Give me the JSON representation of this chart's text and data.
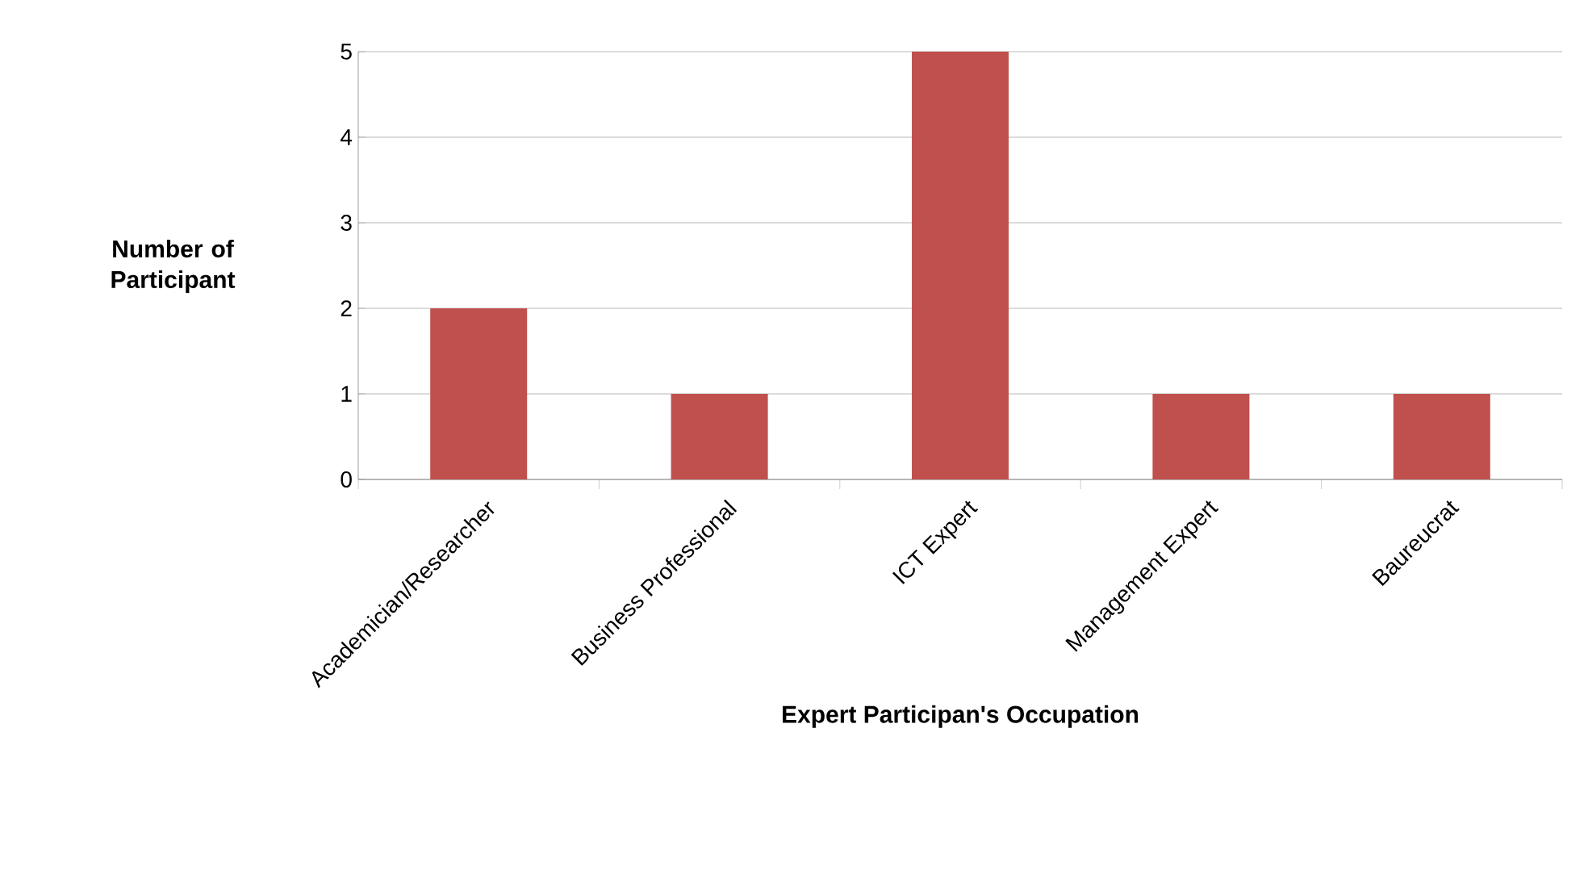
{
  "chart_data": {
    "type": "bar",
    "categories": [
      "Academician/Researcher",
      "Business Professional",
      "ICT Expert",
      "Management Expert",
      "Baureucrat"
    ],
    "values": [
      2,
      1,
      5,
      1,
      1
    ],
    "color": "#c0504d",
    "xlabel": "Expert Participan's  Occupation",
    "ylabel": "Number of Participant",
    "ylim": [
      0,
      5
    ],
    "yticks": [
      0,
      1,
      2,
      3,
      4,
      5
    ],
    "grid": "y"
  }
}
